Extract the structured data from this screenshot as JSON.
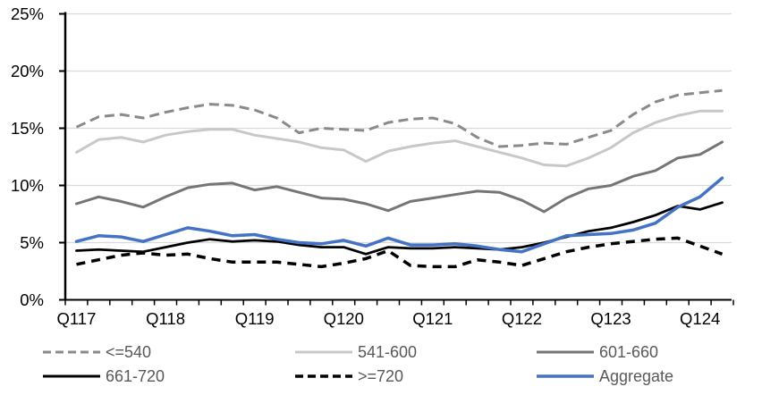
{
  "chart_data": {
    "type": "line",
    "title": "",
    "xlabel": "",
    "ylabel": "",
    "ylim": [
      0,
      25
    ],
    "ytick_step": 5,
    "ytick_labels": [
      "0%",
      "5%",
      "10%",
      "15%",
      "20%",
      "25%"
    ],
    "x_tick_labels": [
      "Q117",
      "Q118",
      "Q119",
      "Q120",
      "Q121",
      "Q122",
      "Q123",
      "Q124"
    ],
    "x_points_per_label": 4,
    "n_points": 30,
    "grid": "horizontal",
    "gridline_color": "#d9d9d9",
    "axis_color": "#000000",
    "legend_position": "bottom",
    "series": [
      {
        "name": "<=540",
        "key": "lte-540",
        "color": "#8a8a8a",
        "dash": true,
        "width": 3,
        "values": [
          15.1,
          16.0,
          16.2,
          15.9,
          16.4,
          16.8,
          17.1,
          17.0,
          16.6,
          15.9,
          14.6,
          15.0,
          14.9,
          14.8,
          15.5,
          15.8,
          15.9,
          15.4,
          14.2,
          13.4,
          13.5,
          13.7,
          13.6,
          14.2,
          14.8,
          16.2,
          17.3,
          17.9,
          18.1,
          18.3
        ]
      },
      {
        "name": "541-600",
        "key": "541-600",
        "color": "#c8c8c8",
        "dash": false,
        "width": 3,
        "values": [
          12.9,
          14.0,
          14.2,
          13.8,
          14.4,
          14.7,
          14.9,
          14.9,
          14.4,
          14.1,
          13.8,
          13.3,
          13.1,
          12.1,
          13.0,
          13.4,
          13.7,
          13.9,
          13.4,
          12.9,
          12.4,
          11.8,
          11.7,
          12.4,
          13.3,
          14.6,
          15.5,
          16.1,
          16.5,
          16.5
        ]
      },
      {
        "name": "601-660",
        "key": "601-660",
        "color": "#757575",
        "dash": false,
        "width": 3,
        "values": [
          8.4,
          9.0,
          8.6,
          8.1,
          9.0,
          9.8,
          10.1,
          10.2,
          9.6,
          9.9,
          9.4,
          8.9,
          8.8,
          8.4,
          7.8,
          8.6,
          8.9,
          9.2,
          9.5,
          9.4,
          8.7,
          7.7,
          8.9,
          9.7,
          10.0,
          10.8,
          11.3,
          12.4,
          12.7,
          13.8
        ]
      },
      {
        "name": "661-720",
        "key": "661-720",
        "color": "#000000",
        "dash": false,
        "width": 2.75,
        "values": [
          4.3,
          4.4,
          4.3,
          4.2,
          4.6,
          5.0,
          5.3,
          5.1,
          5.2,
          5.1,
          4.8,
          4.6,
          4.6,
          4.0,
          4.6,
          4.5,
          4.5,
          4.6,
          4.5,
          4.4,
          4.6,
          5.0,
          5.5,
          6.0,
          6.3,
          6.8,
          7.4,
          8.2,
          7.9,
          8.5
        ]
      },
      {
        "name": ">=720",
        "key": "gte-720",
        "color": "#000000",
        "dash": true,
        "width": 3.5,
        "values": [
          3.1,
          3.5,
          3.9,
          4.1,
          3.9,
          4.0,
          3.6,
          3.3,
          3.3,
          3.3,
          3.1,
          2.9,
          3.2,
          3.6,
          4.3,
          3.0,
          2.9,
          2.9,
          3.5,
          3.3,
          3.0,
          3.6,
          4.2,
          4.6,
          4.9,
          5.1,
          5.3,
          5.4,
          4.7,
          4.0
        ]
      },
      {
        "name": "Aggregate",
        "key": "aggregate",
        "color": "#4472c4",
        "dash": false,
        "width": 3.5,
        "values": [
          5.1,
          5.6,
          5.5,
          5.1,
          5.7,
          6.3,
          6.0,
          5.6,
          5.7,
          5.3,
          5.0,
          4.9,
          5.2,
          4.7,
          5.4,
          4.8,
          4.8,
          4.9,
          4.7,
          4.4,
          4.2,
          4.9,
          5.6,
          5.7,
          5.8,
          6.1,
          6.7,
          8.1,
          9.0,
          10.65
        ]
      }
    ]
  },
  "legend": {
    "rows": [
      [
        "<=540",
        "541-600",
        "601-660"
      ],
      [
        "661-720",
        ">=720",
        "Aggregate"
      ]
    ]
  }
}
